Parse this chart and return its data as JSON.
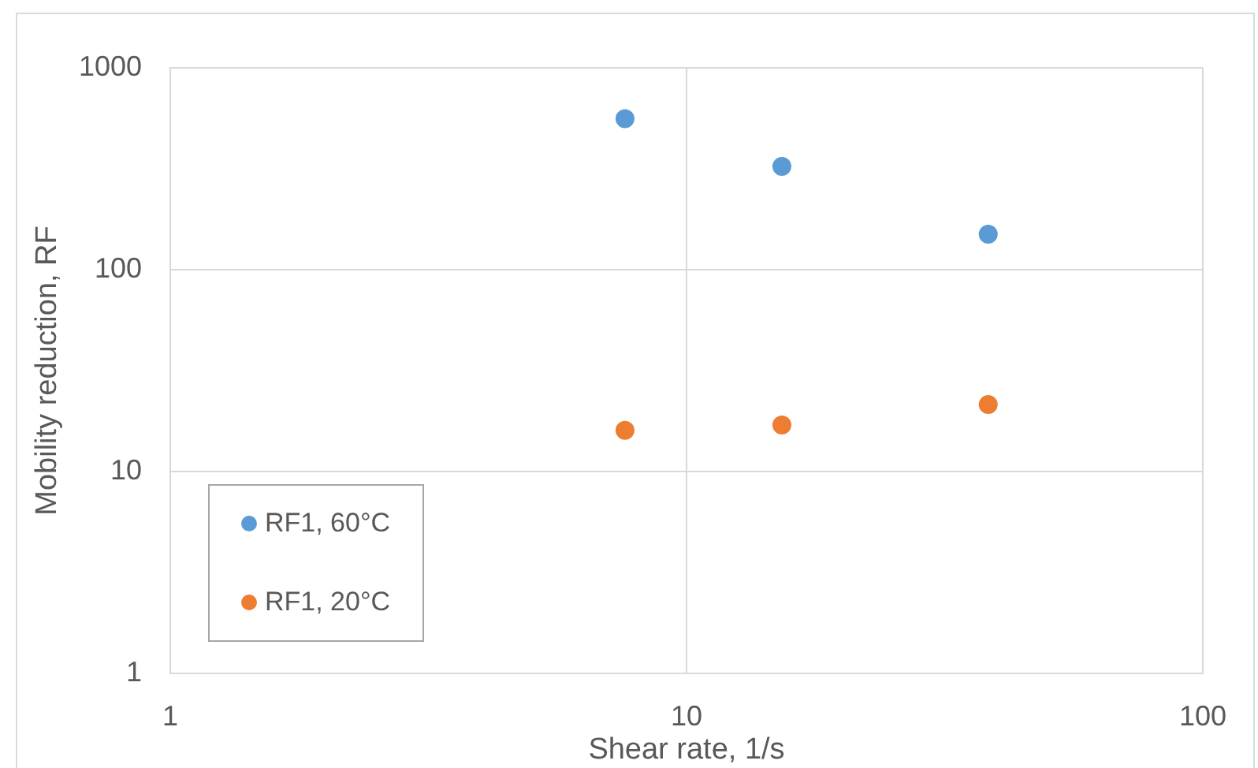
{
  "chart_data": {
    "type": "scatter",
    "xlabel": "Shear rate, 1/s",
    "ylabel": "Mobility reduction, RF",
    "x": [
      7.6,
      15.3,
      38.4
    ],
    "series": [
      {
        "name": "RF1, 60°C",
        "color": "#5b9bd5",
        "values": [
          560,
          325,
          150
        ]
      },
      {
        "name": "RF1, 20°C",
        "color": "#ed7d31",
        "values": [
          16,
          17,
          21.5
        ]
      }
    ],
    "xlim": [
      1,
      100
    ],
    "ylim": [
      1,
      1000
    ],
    "xticks": [
      1,
      10,
      100
    ],
    "yticks": [
      1,
      10,
      100,
      1000
    ],
    "log": "xy",
    "grid": true,
    "legend": "bottom left",
    "marker": "circle"
  }
}
